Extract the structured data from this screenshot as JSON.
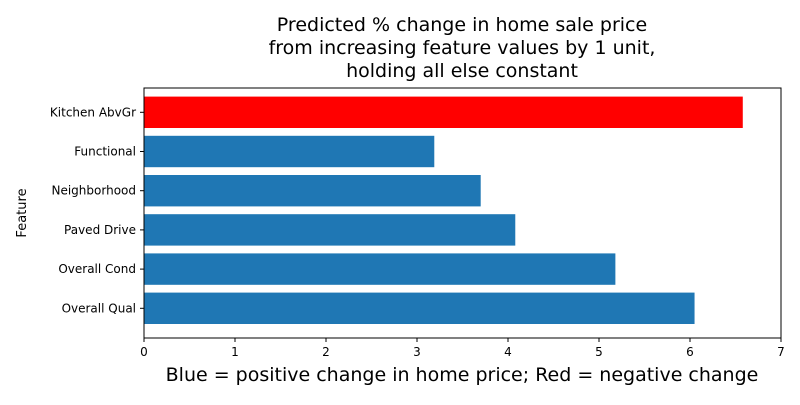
{
  "chart_data": {
    "type": "bar",
    "orientation": "horizontal",
    "title_lines": [
      "Predicted % change in home sale price",
      "from increasing feature values by 1 unit,",
      "holding all else constant"
    ],
    "xlabel": "Blue = positive change in home price; Red = negative change",
    "ylabel": "Feature",
    "categories": [
      "Overall Qual",
      "Overall Cond",
      "Paved Drive",
      "Neighborhood",
      "Functional",
      "Kitchen AbvGr"
    ],
    "values": [
      6.05,
      5.18,
      4.08,
      3.7,
      3.19,
      6.58
    ],
    "colors": [
      "#1f77b4",
      "#1f77b4",
      "#1f77b4",
      "#1f77b4",
      "#1f77b4",
      "#ff0000"
    ],
    "xlim": [
      0,
      7
    ],
    "xticks": [
      "0",
      "1",
      "2",
      "3",
      "4",
      "5",
      "6",
      "7"
    ],
    "grid": false,
    "legend": "none"
  }
}
